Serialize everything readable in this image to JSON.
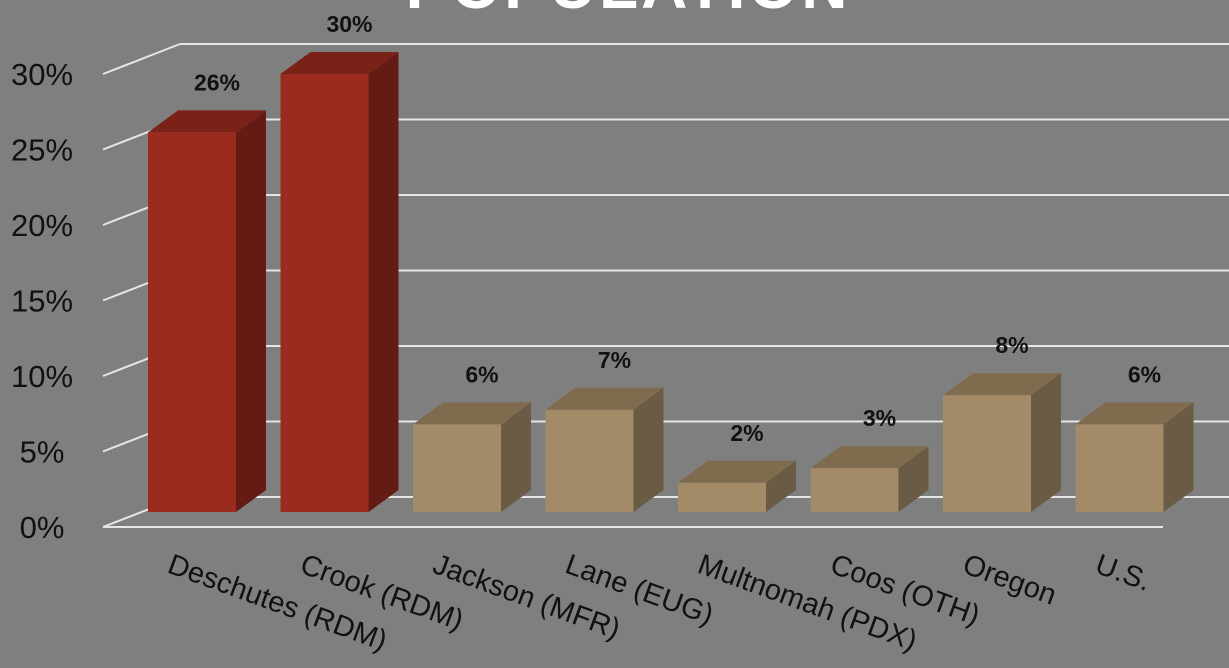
{
  "chart_data": {
    "type": "bar",
    "title": "POPULATION",
    "categories": [
      "Deschutes (RDM)",
      "Crook (RDM)",
      "Jackson (MFR)",
      "Lane (EUG)",
      "Multnomah (PDX)",
      "Coos (OTH)",
      "Oregon",
      "U.S."
    ],
    "values": [
      26,
      30,
      6,
      7,
      2,
      3,
      8,
      6
    ],
    "data_labels": [
      "26%",
      "30%",
      "6%",
      "7%",
      "2%",
      "3%",
      "8%",
      "6%"
    ],
    "y_ticks": [
      "0%",
      "5%",
      "10%",
      "15%",
      "20%",
      "25%",
      "30%"
    ],
    "ylim": [
      0,
      30
    ],
    "grid": true,
    "three_d": true,
    "legend": "none",
    "colors": {
      "highlight_front": "#9c2b1f",
      "highlight_top": "#7a2218",
      "highlight_side": "#641b14",
      "normal_front": "#a38b67",
      "normal_top": "#7f6b4e",
      "normal_side": "#6a5b45",
      "gridline": "#e6e6e6",
      "background": "#7f7f7f"
    },
    "highlighted": [
      true,
      true,
      false,
      false,
      false,
      false,
      false,
      false
    ]
  }
}
